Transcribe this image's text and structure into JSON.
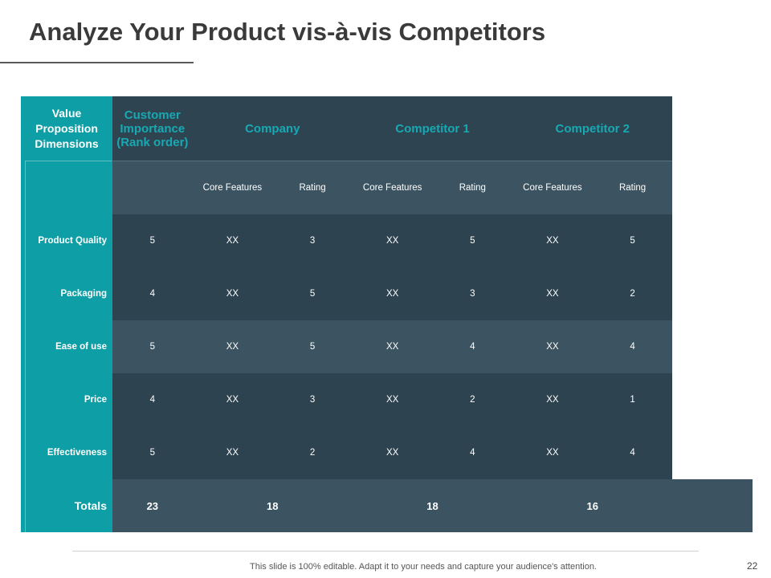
{
  "title": "Analyze Your Product vis-à-vis Competitors",
  "table": {
    "header": [
      "Value Proposition Dimensions",
      "Customer Importance (Rank order)",
      "Company",
      "Competitor 1",
      "Competitor 2"
    ],
    "subheader": [
      "Core Features",
      "Rating",
      "Core Features",
      "Rating",
      "Core Features",
      "Rating"
    ],
    "rows": [
      [
        "Product Quality",
        5,
        "XX",
        3,
        "XX",
        5,
        "XX",
        5
      ],
      [
        "Packaging",
        4,
        "XX",
        5,
        "XX",
        3,
        "XX",
        2
      ],
      [
        "Ease of use",
        5,
        "XX",
        5,
        "XX",
        4,
        "XX",
        4
      ],
      [
        "Price",
        4,
        "XX",
        3,
        "XX",
        2,
        "XX",
        1
      ],
      [
        "Effectiveness",
        5,
        "XX",
        2,
        "XX",
        4,
        "XX",
        4
      ]
    ],
    "totals": {
      "label": "Totals",
      "values": [
        23,
        18,
        18,
        16
      ]
    }
  },
  "footer": {
    "note": "This slide is 100% editable. Adapt it to your needs and capture your audience's attention.",
    "page": "22"
  }
}
